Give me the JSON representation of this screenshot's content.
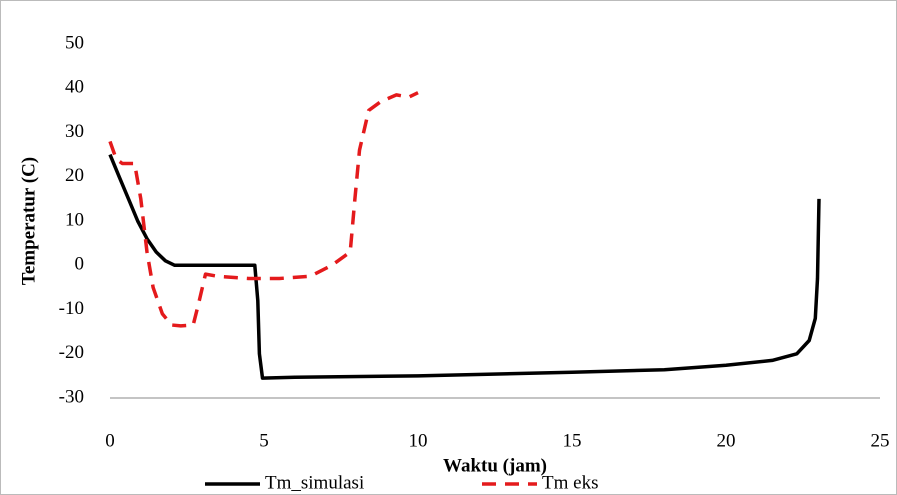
{
  "chart_data": {
    "type": "line",
    "xlabel": "Waktu (jam)",
    "ylabel": "Temperatur (C)",
    "xlim": [
      0,
      25
    ],
    "xticks": [
      0,
      5,
      10,
      15,
      20,
      25
    ],
    "ylim": [
      -30,
      50
    ],
    "yticks": [
      -30,
      -20,
      -10,
      0,
      10,
      20,
      30,
      40,
      50
    ],
    "grid": false,
    "legend": "bottom",
    "series": [
      {
        "name": "Tm_simulasi",
        "color": "#000000",
        "dash": false,
        "x": [
          0,
          0.3,
          0.6,
          0.9,
          1.2,
          1.5,
          1.8,
          2.1,
          3,
          4,
          4.7,
          4.8,
          4.85,
          4.95,
          6,
          10,
          15,
          18,
          20,
          21.5,
          22.3,
          22.7,
          22.9,
          22.97,
          23.02
        ],
        "values": [
          25,
          20,
          15,
          10,
          6,
          3,
          1,
          0,
          0,
          0,
          0,
          -8,
          -20,
          -25.5,
          -25.3,
          -25,
          -24.2,
          -23.6,
          -22.6,
          -21.5,
          -20,
          -17,
          -12,
          -3,
          15
        ]
      },
      {
        "name": "Tm eks",
        "color": "#e41a1c",
        "dash": true,
        "x": [
          0,
          0.2,
          0.4,
          0.8,
          1.0,
          1.2,
          1.4,
          1.7,
          2.0,
          2.3,
          2.7,
          2.9,
          3.1,
          3.5,
          4.5,
          5.5,
          6.5,
          7.2,
          7.6,
          7.8,
          7.95,
          8.1,
          8.4,
          8.8,
          9.3,
          9.7,
          10
        ],
        "values": [
          28,
          24,
          23,
          23,
          15,
          3,
          -5,
          -11,
          -13.5,
          -13.7,
          -13.5,
          -8,
          -2,
          -2.5,
          -3,
          -3,
          -2.5,
          0,
          2,
          3,
          15,
          26,
          35,
          37,
          38.5,
          38,
          39
        ]
      }
    ]
  }
}
